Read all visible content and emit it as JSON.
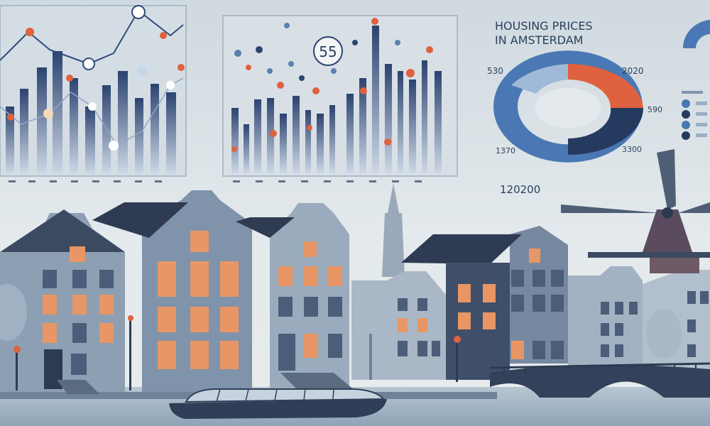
{
  "infographic": {
    "title_line1": "HOUSING PRICES",
    "title_line2": "IN AMSTERDAM",
    "center_badge": "55",
    "donut_labels": {
      "top_left": "530",
      "top_right": "2020",
      "mid_right": "590",
      "bottom_left": "1370",
      "bottom_right": "3300"
    },
    "range_text": "120200"
  },
  "colors": {
    "accent_orange": "#e0613f",
    "navy": "#253a5f",
    "mid_blue": "#4a78b4",
    "sky": "#dfe6ea"
  }
}
